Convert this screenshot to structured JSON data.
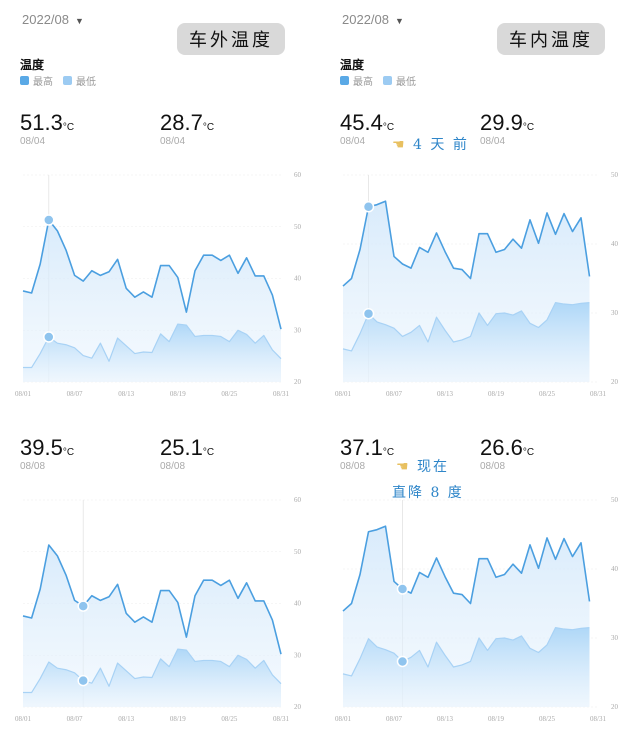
{
  "panels": [
    {
      "month": "2022/08",
      "badge": "车外温度",
      "legend_title": "温度",
      "legend": [
        "最高",
        "最低"
      ],
      "max_value": "51.3",
      "min_value": "28.7",
      "unit": "°C",
      "max_date": "08/04",
      "min_date": "08/04",
      "note1": "",
      "note2": ""
    },
    {
      "month": "2022/08",
      "badge": "车内温度",
      "legend_title": "温度",
      "legend": [
        "最高",
        "最低"
      ],
      "max_value": "45.4",
      "min_value": "29.9",
      "unit": "°C",
      "max_date": "08/04",
      "min_date": "08/04",
      "note1": "4 天 前",
      "note2": ""
    },
    {
      "max_value": "39.5",
      "min_value": "25.1",
      "unit": "°C",
      "max_date": "08/08",
      "min_date": "08/08",
      "note1": "",
      "note2": ""
    },
    {
      "max_value": "37.1",
      "min_value": "26.6",
      "unit": "°C",
      "max_date": "08/08",
      "min_date": "08/08",
      "note1": "现在",
      "note2": "直降 8 度"
    }
  ],
  "colors": {
    "high": "#5aa9e6",
    "low": "#9ccbf2",
    "high_line": "#4b9fe0",
    "grid": "#eeeeee"
  },
  "icons": {
    "month_dropdown": "caret-down-icon",
    "note": "pointing-hand-icon"
  },
  "chart_data": [
    {
      "type": "area",
      "title": "车外温度",
      "x_ticks": [
        "08/01",
        "08/07",
        "08/13",
        "08/19",
        "08/25",
        "08/31"
      ],
      "y_ticks": [
        20,
        30,
        40,
        50,
        60
      ],
      "ylim": [
        20,
        60
      ],
      "grid": true,
      "legend_placement": "top-left",
      "highlight_day": "08/04",
      "series": [
        {
          "name": "最高",
          "values": [
            37.6,
            37.2,
            42.8,
            51.3,
            49.2,
            45.5,
            40.6,
            39.5,
            41.5,
            40.6,
            41.3,
            43.7,
            38.1,
            36.4,
            37.4,
            36.4,
            42.5,
            42.5,
            40.2,
            33.5,
            41.5,
            44.5,
            44.5,
            43.5,
            44.5,
            41.0,
            44.0,
            40.5,
            40.5,
            36.8,
            30.2
          ]
        },
        {
          "name": "最低",
          "values": [
            22.8,
            22.8,
            25.5,
            28.7,
            27.5,
            27.2,
            26.6,
            25.1,
            24.6,
            27.5,
            24.0,
            28.5,
            27.0,
            25.5,
            25.8,
            25.7,
            29.3,
            27.8,
            31.2,
            31.0,
            28.8,
            29.0,
            29.0,
            28.8,
            27.8,
            30.0,
            29.2,
            27.5,
            29.0,
            26.2,
            24.5
          ]
        }
      ]
    },
    {
      "type": "area",
      "title": "车内温度",
      "x_ticks": [
        "08/01",
        "08/07",
        "08/13",
        "08/19",
        "08/25",
        "08/31"
      ],
      "y_ticks": [
        20,
        30,
        40,
        50
      ],
      "ylim": [
        20,
        50
      ],
      "grid": true,
      "legend_placement": "top-left",
      "highlight_day": "08/04",
      "series": [
        {
          "name": "最高",
          "values": [
            33.9,
            35.0,
            39.2,
            45.4,
            45.7,
            46.2,
            38.2,
            37.1,
            36.5,
            39.5,
            38.8,
            41.6,
            38.9,
            36.5,
            36.3,
            35.0,
            41.5,
            41.5,
            38.8,
            39.2,
            40.7,
            39.4,
            43.5,
            40.1,
            44.5,
            41.4,
            44.4,
            41.8,
            43.8,
            35.3
          ]
        },
        {
          "name": "最低",
          "values": [
            24.8,
            24.5,
            27.0,
            29.9,
            28.7,
            28.3,
            27.8,
            26.6,
            27.2,
            28.2,
            25.8,
            29.4,
            27.5,
            25.8,
            26.1,
            26.6,
            30.0,
            28.2,
            29.9,
            30.0,
            29.7,
            30.3,
            28.5,
            27.9,
            29.0,
            31.5,
            31.3,
            31.2,
            31.4,
            31.5
          ]
        }
      ]
    },
    {
      "type": "area",
      "ref": 0,
      "highlight_day": "08/08"
    },
    {
      "type": "area",
      "ref": 1,
      "highlight_day": "08/08"
    }
  ]
}
